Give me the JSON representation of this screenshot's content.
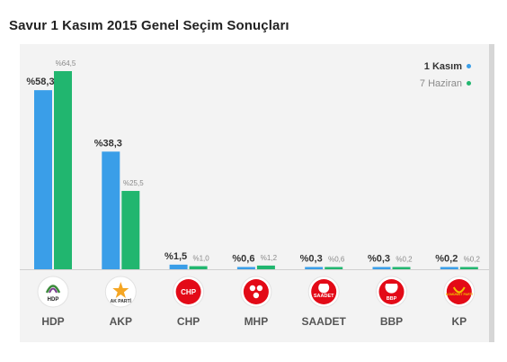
{
  "title": "Savur 1 Kasım 2015 Genel Seçim Sonuçları",
  "colors": {
    "series1": "#3a9ee8",
    "series2": "#21b66f",
    "background": "#f3f3f3",
    "baseline": "#d0d0d0"
  },
  "chart_data": {
    "type": "bar",
    "title": "Savur 1 Kasım 2015 Genel Seçim Sonuçları",
    "categories": [
      "HDP",
      "AKP",
      "CHP",
      "MHP",
      "SAADET",
      "BBP",
      "KP"
    ],
    "series": [
      {
        "name": "1 Kasım",
        "values": [
          58.3,
          38.3,
          1.5,
          0.6,
          0.3,
          0.3,
          0.2
        ],
        "labels": [
          "%58,3",
          "%38,3",
          "%1,5",
          "%0,6",
          "%0,3",
          "%0,3",
          "%0,2"
        ]
      },
      {
        "name": "7 Haziran",
        "values": [
          64.5,
          25.5,
          1.0,
          1.2,
          0.6,
          0.2,
          0.2
        ],
        "labels": [
          "%64,5",
          "%25,5",
          "%1,0",
          "%1,2",
          "%0,6",
          "%0,2",
          "%0,2"
        ]
      }
    ],
    "logos": [
      {
        "icon": "hdp-logo-icon",
        "text": "HDP",
        "color": "#3c8a3c"
      },
      {
        "icon": "akp-logo-icon",
        "text": "AK PARTİ",
        "color": "#f5a623"
      },
      {
        "icon": "chp-logo-icon",
        "text": "CHP",
        "color": "#e30a17"
      },
      {
        "icon": "mhp-logo-icon",
        "text": "",
        "color": "#e30a17"
      },
      {
        "icon": "saadet-logo-icon",
        "text": "SAADET",
        "color": "#e30a17"
      },
      {
        "icon": "bbp-logo-icon",
        "text": "BBP",
        "color": "#e30a17"
      },
      {
        "icon": "kp-logo-icon",
        "text": "KOMÜNİST PARTİ",
        "color": "#e30a17"
      }
    ],
    "ylim": [
      0,
      64.5
    ],
    "grid": false,
    "legend_position": "top-right"
  }
}
